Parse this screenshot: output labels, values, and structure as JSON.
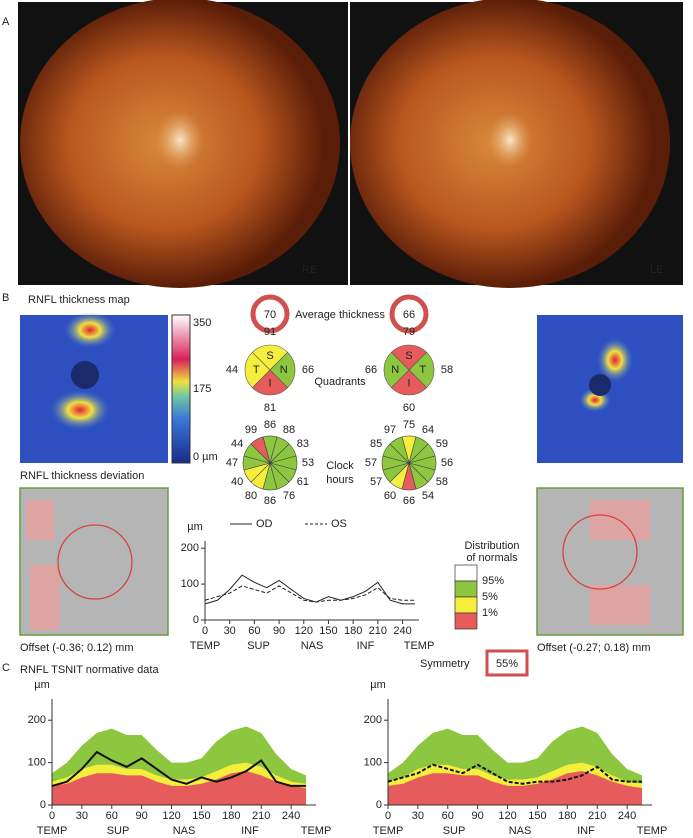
{
  "panel_a": {
    "label": "A",
    "right_eye": "RE",
    "left_eye": "LE"
  },
  "panel_b": {
    "label": "B",
    "map_title": "RNFL thickness map",
    "colorbar_labels": [
      "350",
      "175",
      "0 µm"
    ],
    "deviation_title": "RNFL thickness deviation",
    "offset_od": "Offset (-0.36; 0.12) mm",
    "offset_os": "Offset (-0.27; 0.18) mm",
    "average": {
      "label": "Average thickness",
      "od": 70,
      "os": 66
    },
    "quadrants": {
      "label": "Quadrants",
      "od": {
        "letters": [
          "S",
          "N",
          "I",
          "T"
        ],
        "values": [
          91,
          66,
          81,
          44
        ],
        "colors": [
          "#f5ee3c",
          "#8dc63f",
          "#e65c5c",
          "#f5ee3c"
        ]
      },
      "os": {
        "letters": [
          "S",
          "T",
          "I",
          "N"
        ],
        "values": [
          79,
          58,
          60,
          66
        ],
        "colors": [
          "#e65c5c",
          "#8dc63f",
          "#e65c5c",
          "#8dc63f"
        ]
      }
    },
    "clock_hours": {
      "label_lines": [
        "Clock",
        "hours"
      ],
      "od": {
        "values": [
          86,
          88,
          83,
          53,
          61,
          76,
          86,
          80,
          40,
          47,
          44,
          99
        ],
        "colors": [
          "#8dc63f",
          "#8dc63f",
          "#8dc63f",
          "#8dc63f",
          "#8dc63f",
          "#8dc63f",
          "#8dc63f",
          "#f5ee3c",
          "#f5ee3c",
          "#8dc63f",
          "#8dc63f",
          "#e65c5c"
        ]
      },
      "os": {
        "values": [
          75,
          64,
          59,
          56,
          58,
          54,
          66,
          60,
          57,
          57,
          85,
          97
        ],
        "colors": [
          "#f5ee3c",
          "#8dc63f",
          "#8dc63f",
          "#8dc63f",
          "#8dc63f",
          "#8dc63f",
          "#e65c5c",
          "#f5ee3c",
          "#8dc63f",
          "#8dc63f",
          "#8dc63f",
          "#8dc63f"
        ]
      }
    },
    "distribution": {
      "title_lines": [
        "Distribution",
        "of normals"
      ],
      "levels": [
        {
          "label": "95%",
          "color": "#ffffff"
        },
        {
          "label": "5%",
          "color": "#8dc63f"
        },
        {
          "label": "1%",
          "color": "#f5ee3c"
        },
        {
          "color": "#e65c5c"
        }
      ]
    },
    "symmetry": {
      "label": "Symmetry",
      "value": "55%"
    }
  },
  "panel_c": {
    "label": "C",
    "title": "RNFL TSNIT normative data"
  },
  "chart_data": [
    {
      "type": "line",
      "y_label": "µm",
      "x": [
        0,
        15,
        30,
        45,
        60,
        75,
        90,
        105,
        120,
        135,
        150,
        165,
        180,
        195,
        210,
        225,
        240,
        255
      ],
      "xlim": [
        0,
        260
      ],
      "ylim": [
        0,
        220
      ],
      "xticks": [
        0,
        30,
        60,
        90,
        120,
        150,
        180,
        210,
        240
      ],
      "yticks": [
        0,
        100,
        200
      ],
      "regions": [
        "TEMP",
        "SUP",
        "NAS",
        "INF",
        "TEMP"
      ],
      "series": [
        {
          "name": "OD",
          "color": "#222222",
          "dashed": false,
          "values": [
            45,
            55,
            85,
            125,
            105,
            90,
            110,
            85,
            60,
            50,
            65,
            55,
            65,
            80,
            105,
            55,
            45,
            45
          ]
        },
        {
          "name": "OS",
          "color": "#222222",
          "dashed": true,
          "values": [
            55,
            65,
            75,
            95,
            85,
            75,
            95,
            75,
            55,
            50,
            55,
            55,
            60,
            70,
            90,
            60,
            55,
            55
          ]
        }
      ]
    },
    {
      "type": "band_line",
      "y_label": "µm",
      "x": [
        0,
        15,
        30,
        45,
        60,
        75,
        90,
        105,
        120,
        135,
        150,
        165,
        180,
        195,
        210,
        225,
        240,
        255
      ],
      "xlim": [
        0,
        265
      ],
      "ylim": [
        0,
        250
      ],
      "xticks": [
        0,
        30,
        60,
        90,
        120,
        150,
        180,
        210,
        240
      ],
      "yticks": [
        0,
        100,
        200
      ],
      "regions": [
        "TEMP",
        "SUP",
        "NAS",
        "INF",
        "TEMP"
      ],
      "bands": [
        {
          "color": "#8dc63f",
          "values": [
            75,
            100,
            140,
            170,
            180,
            165,
            165,
            130,
            100,
            100,
            110,
            150,
            175,
            185,
            170,
            120,
            85,
            70
          ]
        },
        {
          "color": "#f5ee3c",
          "values": [
            55,
            65,
            85,
            95,
            95,
            85,
            85,
            70,
            60,
            60,
            65,
            80,
            95,
            100,
            90,
            70,
            55,
            50
          ]
        },
        {
          "color": "#e65c5c",
          "values": [
            45,
            50,
            65,
            75,
            75,
            70,
            70,
            55,
            45,
            45,
            50,
            60,
            75,
            80,
            70,
            55,
            45,
            40
          ]
        }
      ],
      "series": [
        {
          "color": "#111111",
          "dashed": false,
          "values": [
            45,
            55,
            85,
            125,
            105,
            90,
            110,
            85,
            60,
            50,
            65,
            55,
            65,
            80,
            105,
            55,
            45,
            45
          ]
        }
      ]
    },
    {
      "type": "band_line",
      "y_label": "µm",
      "x": [
        0,
        15,
        30,
        45,
        60,
        75,
        90,
        105,
        120,
        135,
        150,
        165,
        180,
        195,
        210,
        225,
        240,
        255
      ],
      "xlim": [
        0,
        265
      ],
      "ylim": [
        0,
        250
      ],
      "xticks": [
        0,
        30,
        60,
        90,
        120,
        150,
        180,
        210,
        240
      ],
      "yticks": [
        0,
        100,
        200
      ],
      "regions": [
        "TEMP",
        "SUP",
        "NAS",
        "INF",
        "TEMP"
      ],
      "bands": [
        {
          "color": "#8dc63f",
          "values": [
            75,
            100,
            140,
            170,
            180,
            165,
            165,
            130,
            100,
            100,
            110,
            150,
            175,
            185,
            170,
            120,
            85,
            70
          ]
        },
        {
          "color": "#f5ee3c",
          "values": [
            55,
            65,
            85,
            95,
            95,
            85,
            85,
            70,
            60,
            60,
            65,
            80,
            95,
            100,
            90,
            70,
            55,
            50
          ]
        },
        {
          "color": "#e65c5c",
          "values": [
            45,
            50,
            65,
            75,
            75,
            70,
            70,
            55,
            45,
            45,
            50,
            60,
            75,
            80,
            70,
            55,
            45,
            40
          ]
        }
      ],
      "series": [
        {
          "color": "#111111",
          "dashed": true,
          "values": [
            55,
            65,
            75,
            95,
            85,
            75,
            95,
            75,
            55,
            50,
            55,
            55,
            60,
            70,
            90,
            60,
            55,
            55
          ]
        }
      ]
    }
  ]
}
